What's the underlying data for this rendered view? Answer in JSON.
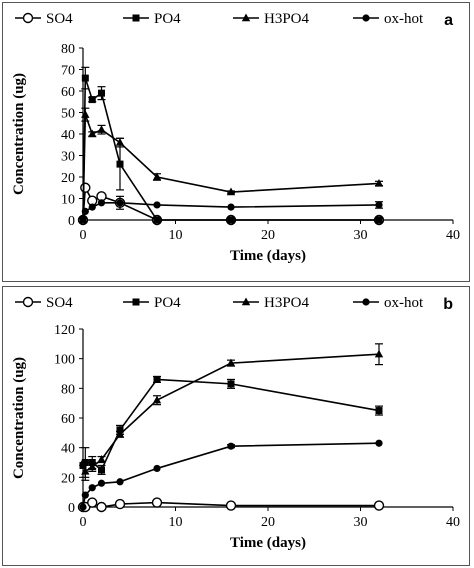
{
  "chart_data": [
    {
      "type": "line",
      "panel_label": "a",
      "xlabel": "Time (days)",
      "ylabel": "Concentration (ug)",
      "xlim": [
        0,
        40
      ],
      "ylim": [
        0,
        80
      ],
      "xticks": [
        0,
        10,
        20,
        30,
        40
      ],
      "yticks": [
        0,
        10,
        20,
        30,
        40,
        50,
        60,
        70,
        80
      ],
      "legend_position": "top",
      "series": [
        {
          "name": "SO4",
          "marker": "open-circle",
          "points": [
            [
              0,
              0
            ],
            [
              0.25,
              15
            ],
            [
              1,
              9
            ],
            [
              2,
              11
            ],
            [
              4,
              8
            ],
            [
              8,
              0
            ],
            [
              16,
              0
            ],
            [
              32,
              0
            ]
          ],
          "errors": [
            0,
            0,
            0,
            0,
            0,
            0,
            0,
            0
          ]
        },
        {
          "name": "PO4",
          "marker": "square",
          "points": [
            [
              0,
              0
            ],
            [
              0.25,
              66
            ],
            [
              1,
              56
            ],
            [
              2,
              59
            ],
            [
              4,
              26
            ],
            [
              8,
              0
            ],
            [
              16,
              0
            ],
            [
              32,
              0
            ]
          ],
          "errors": [
            0,
            5,
            1,
            3,
            12,
            0,
            0,
            0
          ]
        },
        {
          "name": "H3PO4",
          "marker": "triangle",
          "points": [
            [
              0,
              0
            ],
            [
              0.25,
              49
            ],
            [
              1,
              40
            ],
            [
              2,
              42
            ],
            [
              4,
              36
            ],
            [
              8,
              20
            ],
            [
              16,
              13
            ],
            [
              32,
              17
            ]
          ],
          "errors": [
            0,
            3,
            1,
            2,
            2,
            1.5,
            0.5,
            1
          ]
        },
        {
          "name": "ox-hot",
          "marker": "filled-circle",
          "points": [
            [
              0,
              0
            ],
            [
              0.25,
              4
            ],
            [
              1,
              6
            ],
            [
              2,
              8
            ],
            [
              4,
              8
            ],
            [
              8,
              7
            ],
            [
              16,
              6
            ],
            [
              32,
              7
            ]
          ],
          "errors": [
            0,
            0,
            0,
            0,
            3,
            0,
            0,
            1.5
          ]
        }
      ]
    },
    {
      "type": "line",
      "panel_label": "b",
      "xlabel": "Time (days)",
      "ylabel": "Concentration (ug)",
      "xlim": [
        0,
        40
      ],
      "ylim": [
        0,
        120
      ],
      "xticks": [
        0,
        10,
        20,
        30,
        40
      ],
      "yticks": [
        0,
        20,
        40,
        60,
        80,
        100,
        120
      ],
      "legend_position": "top",
      "series": [
        {
          "name": "SO4",
          "marker": "open-circle",
          "points": [
            [
              0,
              0
            ],
            [
              0.25,
              0
            ],
            [
              1,
              3
            ],
            [
              2,
              0
            ],
            [
              4,
              2
            ],
            [
              8,
              3
            ],
            [
              16,
              1
            ],
            [
              32,
              1
            ]
          ],
          "errors": [
            0,
            0,
            0,
            0,
            0,
            0,
            0,
            0
          ]
        },
        {
          "name": "PO4",
          "marker": "square",
          "points": [
            [
              0,
              28
            ],
            [
              0.25,
              30
            ],
            [
              1,
              30
            ],
            [
              2,
              25
            ],
            [
              4,
              52
            ],
            [
              8,
              86
            ],
            [
              16,
              83
            ],
            [
              32,
              65
            ]
          ],
          "errors": [
            0,
            10,
            4,
            3,
            3,
            2,
            3,
            3
          ]
        },
        {
          "name": "H3PO4",
          "marker": "triangle",
          "points": [
            [
              0,
              30
            ],
            [
              0.25,
              24
            ],
            [
              1,
              27
            ],
            [
              2,
              32
            ],
            [
              4,
              49
            ],
            [
              8,
              72
            ],
            [
              16,
              97
            ],
            [
              32,
              103
            ]
          ],
          "errors": [
            0,
            6,
            3,
            2,
            2,
            3,
            2,
            7
          ]
        },
        {
          "name": "ox-hot",
          "marker": "filled-circle",
          "points": [
            [
              0,
              0
            ],
            [
              0.25,
              8
            ],
            [
              1,
              13
            ],
            [
              2,
              16
            ],
            [
              4,
              17
            ],
            [
              8,
              26
            ],
            [
              16,
              41
            ],
            [
              32,
              43
            ]
          ],
          "errors": [
            0,
            0,
            0,
            0,
            0,
            0,
            1,
            0
          ]
        }
      ]
    }
  ]
}
